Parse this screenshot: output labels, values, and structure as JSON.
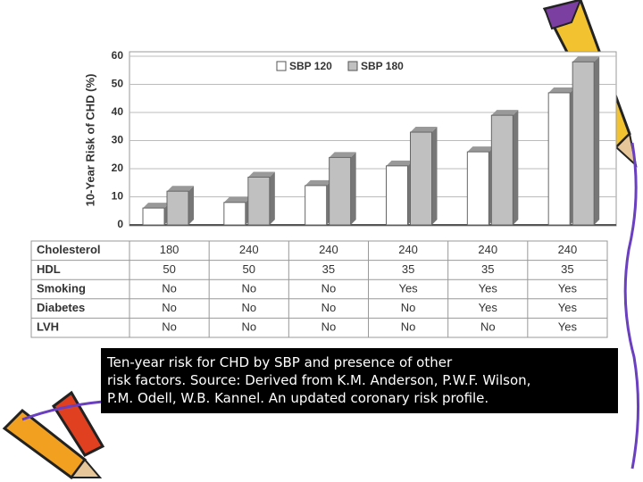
{
  "chart_data": {
    "type": "bar",
    "ylabel": "10-Year Risk of CHD (%)",
    "categories": [
      null,
      null,
      null,
      null,
      null,
      null
    ],
    "series": [
      {
        "name": "SBP 120",
        "color": "#ffffff",
        "values": [
          6,
          8,
          14,
          21,
          26,
          47
        ]
      },
      {
        "name": "SBP 180",
        "color": "#c0c0c0",
        "values": [
          12,
          17,
          24,
          33,
          39,
          58
        ]
      }
    ],
    "ylim": [
      0,
      60
    ],
    "yticks": [
      0,
      10,
      20,
      30,
      40,
      50,
      60
    ],
    "grid": true,
    "legend": "top"
  },
  "table": {
    "rows": [
      [
        "Cholesterol",
        "180",
        "240",
        "240",
        "240",
        "240",
        "240"
      ],
      [
        "HDL",
        "50",
        "50",
        "35",
        "35",
        "35",
        "35"
      ],
      [
        "Smoking",
        "No",
        "No",
        "No",
        "Yes",
        "Yes",
        "Yes"
      ],
      [
        "Diabetes",
        "No",
        "No",
        "No",
        "No",
        "Yes",
        "Yes"
      ],
      [
        "LVH",
        "No",
        "No",
        "No",
        "No",
        "No",
        "Yes"
      ]
    ]
  },
  "caption": {
    "lines": [
      "Ten-year risk for CHD by SBP and presence of other",
      "risk factors. Source: Derived from K.M. Anderson, P.W.F. Wilson,",
      "P.M. Odell, W.B. Kannel. An updated coronary risk profile."
    ]
  }
}
